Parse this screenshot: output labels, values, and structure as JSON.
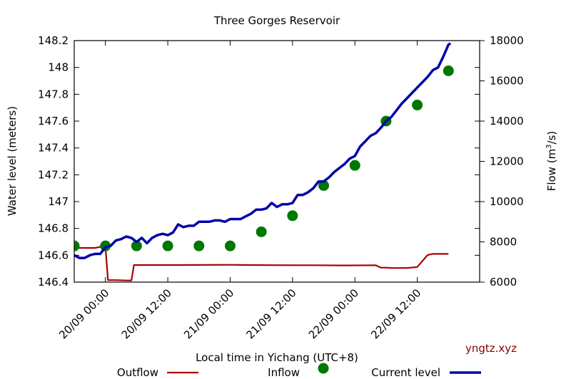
{
  "chart_data": {
    "type": "line",
    "title": "Three Gorges Reservoir",
    "xlabel": "Local time in Yichang (UTC+8)",
    "ylabel": "Water level (meters)",
    "y2label": "Flow (m³/s)",
    "y2label_parts": {
      "prefix": "Flow (m",
      "sup": "3",
      "suffix": "/s)"
    },
    "watermark": "yngtz.xyz",
    "x_range_hours": [
      0,
      78
    ],
    "x_ticks": [
      {
        "hour": 6,
        "label": "20/09 00:00"
      },
      {
        "hour": 18,
        "label": "20/09 12:00"
      },
      {
        "hour": 30,
        "label": "21/09 00:00"
      },
      {
        "hour": 42,
        "label": "21/09 12:00"
      },
      {
        "hour": 54,
        "label": "22/09 00:00"
      },
      {
        "hour": 66,
        "label": "22/09 12:00"
      }
    ],
    "ylim": [
      146.4,
      148.2
    ],
    "y_ticks": [
      "146.4",
      "146.6",
      "146.8",
      "147",
      "147.2",
      "147.4",
      "147.6",
      "147.8",
      "148",
      "148.2"
    ],
    "y2lim": [
      6000,
      18000
    ],
    "y2_ticks": [
      "6000",
      "8000",
      "10000",
      "12000",
      "14000",
      "16000",
      "18000"
    ],
    "grid": false,
    "legend_position": "bottom",
    "series": [
      {
        "name": "Outflow",
        "axis": "right",
        "style": "line",
        "color": "#aa0000",
        "points": [
          [
            0,
            7700
          ],
          [
            4,
            7700
          ],
          [
            5,
            7750
          ],
          [
            6,
            7750
          ],
          [
            6.5,
            6100
          ],
          [
            8,
            6100
          ],
          [
            10,
            6080
          ],
          [
            11,
            6080
          ],
          [
            11.5,
            6850
          ],
          [
            15,
            6850
          ],
          [
            18,
            6850
          ],
          [
            21,
            6850
          ],
          [
            30,
            6860
          ],
          [
            33,
            6850
          ],
          [
            42,
            6840
          ],
          [
            46,
            6840
          ],
          [
            52,
            6830
          ],
          [
            58,
            6840
          ],
          [
            59,
            6720
          ],
          [
            60,
            6720
          ],
          [
            61,
            6700
          ],
          [
            64,
            6700
          ],
          [
            66,
            6750
          ],
          [
            67,
            7050
          ],
          [
            68,
            7350
          ],
          [
            69,
            7400
          ],
          [
            72,
            7400
          ]
        ]
      },
      {
        "name": "Inflow",
        "axis": "right",
        "style": "points",
        "color": "#007700",
        "points": [
          [
            0,
            7800
          ],
          [
            6,
            7800
          ],
          [
            12,
            7800
          ],
          [
            18,
            7800
          ],
          [
            24,
            7800
          ],
          [
            30,
            7800
          ],
          [
            36,
            8500
          ],
          [
            42,
            9300
          ],
          [
            48,
            10800
          ],
          [
            54,
            11800
          ],
          [
            60,
            14000
          ],
          [
            66,
            14800
          ],
          [
            72,
            16500
          ]
        ]
      },
      {
        "name": "Current level",
        "axis": "left",
        "style": "line",
        "color": "#0000aa",
        "points": [
          [
            0,
            146.6
          ],
          [
            1,
            146.58
          ],
          [
            2,
            146.58
          ],
          [
            3,
            146.6
          ],
          [
            4,
            146.61
          ],
          [
            5,
            146.61
          ],
          [
            6,
            146.66
          ],
          [
            7,
            146.67
          ],
          [
            8,
            146.71
          ],
          [
            9,
            146.72
          ],
          [
            10,
            146.74
          ],
          [
            11,
            146.73
          ],
          [
            12,
            146.7
          ],
          [
            13,
            146.73
          ],
          [
            14,
            146.69
          ],
          [
            15,
            146.73
          ],
          [
            16,
            146.75
          ],
          [
            17,
            146.76
          ],
          [
            18,
            146.75
          ],
          [
            19,
            146.77
          ],
          [
            20,
            146.83
          ],
          [
            21,
            146.81
          ],
          [
            22,
            146.82
          ],
          [
            23,
            146.82
          ],
          [
            24,
            146.85
          ],
          [
            25,
            146.85
          ],
          [
            26,
            146.85
          ],
          [
            27,
            146.86
          ],
          [
            28,
            146.86
          ],
          [
            29,
            146.85
          ],
          [
            30,
            146.87
          ],
          [
            31,
            146.87
          ],
          [
            32,
            146.87
          ],
          [
            33,
            146.89
          ],
          [
            34,
            146.91
          ],
          [
            35,
            146.94
          ],
          [
            36,
            146.94
          ],
          [
            37,
            146.95
          ],
          [
            38,
            146.99
          ],
          [
            39,
            146.96
          ],
          [
            40,
            146.98
          ],
          [
            41,
            146.98
          ],
          [
            42,
            146.99
          ],
          [
            43,
            147.05
          ],
          [
            44,
            147.05
          ],
          [
            45,
            147.07
          ],
          [
            46,
            147.1
          ],
          [
            47,
            147.15
          ],
          [
            48,
            147.15
          ],
          [
            49,
            147.18
          ],
          [
            50,
            147.22
          ],
          [
            51,
            147.25
          ],
          [
            52,
            147.28
          ],
          [
            53,
            147.32
          ],
          [
            54,
            147.34
          ],
          [
            55,
            147.41
          ],
          [
            56,
            147.45
          ],
          [
            57,
            147.49
          ],
          [
            58,
            147.51
          ],
          [
            59,
            147.55
          ],
          [
            60,
            147.6
          ],
          [
            61,
            147.63
          ],
          [
            62,
            147.68
          ],
          [
            63,
            147.73
          ],
          [
            64,
            147.77
          ],
          [
            65,
            147.81
          ],
          [
            66,
            147.85
          ],
          [
            67,
            147.89
          ],
          [
            68,
            147.93
          ],
          [
            69,
            147.98
          ],
          [
            70,
            148.0
          ],
          [
            71,
            148.08
          ],
          [
            72,
            148.17
          ],
          [
            72.4,
            148.18
          ]
        ]
      }
    ]
  }
}
